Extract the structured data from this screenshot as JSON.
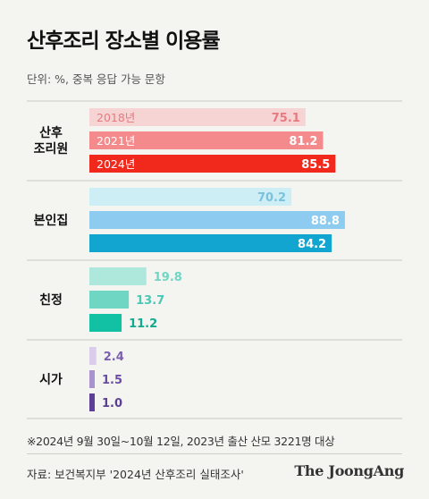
{
  "title": "산후조리 장소별 이용률",
  "unit_note": "단위: %, 중복 응답 가능 문항",
  "chart_data": {
    "type": "bar",
    "orientation": "horizontal",
    "xlim": [
      0,
      100
    ],
    "grid": false,
    "series_names": [
      "2018년",
      "2021년",
      "2024년"
    ],
    "groups": [
      {
        "label": "산후\n조리원",
        "values": [
          75.1,
          81.2,
          85.5
        ],
        "colors": [
          "#f6d4d4",
          "#f58a8c",
          "#f0291c"
        ],
        "text_colors": [
          "#e77a80",
          "#ffffff",
          "#ffffff"
        ]
      },
      {
        "label": "본인집",
        "values": [
          70.2,
          88.8,
          84.2
        ],
        "colors": [
          "#cdeef4",
          "#8ecbf0",
          "#12a5cf"
        ],
        "text_colors": [
          "#7bc2de",
          "#ffffff",
          "#ffffff"
        ]
      },
      {
        "label": "친정",
        "values": [
          19.8,
          13.7,
          11.2
        ],
        "colors": [
          "#aee8dc",
          "#6fd6c4",
          "#12c0a3"
        ],
        "text_colors": [
          "#6fd6c4",
          "#4cc7b3",
          "#12a98f"
        ]
      },
      {
        "label": "시가",
        "values": [
          2.4,
          1.5,
          1.0
        ],
        "colors": [
          "#d9cdeb",
          "#a993cf",
          "#5e3f97"
        ],
        "text_colors": [
          "#7a5fb0",
          "#6a4da3",
          "#5e3f97"
        ]
      }
    ]
  },
  "footnote": "※2024년 9월 30일~10월 12일, 2023년 출산 산모 3221명 대상",
  "source": "자료: 보건복지부 '2024년 산후조리 실태조사'",
  "brand": "The JoongAng"
}
